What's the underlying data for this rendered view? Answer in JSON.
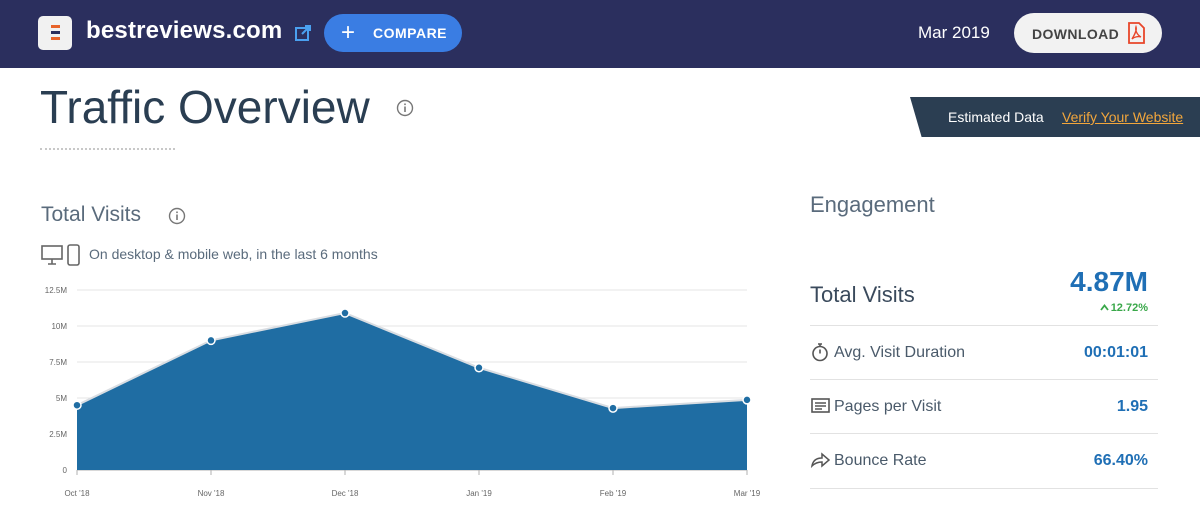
{
  "header": {
    "site": "bestreviews.com",
    "compare_label": "COMPARE",
    "period": "Mar 2019",
    "download_label": "DOWNLOAD"
  },
  "page": {
    "title": "Traffic Overview",
    "estimated_label": "Estimated Data",
    "verify_label": "Verify Your Website"
  },
  "total_visits": {
    "title": "Total Visits",
    "subtitle": "On desktop & mobile web, in the last 6 months"
  },
  "chart_data": {
    "type": "area",
    "categories": [
      "Oct '18",
      "Nov '18",
      "Dec '18",
      "Jan '19",
      "Feb '19",
      "Mar '19"
    ],
    "values": [
      4.5,
      9.0,
      10.9,
      7.1,
      4.3,
      4.87
    ],
    "ytick_labels": [
      "0",
      "2.5M",
      "5M",
      "7.5M",
      "10M",
      "12.5M"
    ],
    "yticks": [
      0,
      2.5,
      5,
      7.5,
      10,
      12.5
    ],
    "ylim": [
      0,
      12.5
    ],
    "grid": true,
    "colors": {
      "fill": "#1f6da3",
      "line": "#d9dde2",
      "point": "#1f6da3"
    }
  },
  "engagement": {
    "title": "Engagement",
    "total_visits_label": "Total Visits",
    "total_visits_value": "4.87M",
    "total_visits_change": "12.72%",
    "metrics": [
      {
        "icon": "stopwatch-icon",
        "label": "Avg. Visit Duration",
        "value": "00:01:01"
      },
      {
        "icon": "pages-icon",
        "label": "Pages per Visit",
        "value": "1.95"
      },
      {
        "icon": "bounce-icon",
        "label": "Bounce Rate",
        "value": "66.40%"
      }
    ]
  },
  "colors": {
    "topbar": "#2b2f5e",
    "accent": "#3a7de3",
    "value_blue": "#1f6fb5",
    "positive": "#3aa84a",
    "verify_link": "#f2a63c"
  }
}
